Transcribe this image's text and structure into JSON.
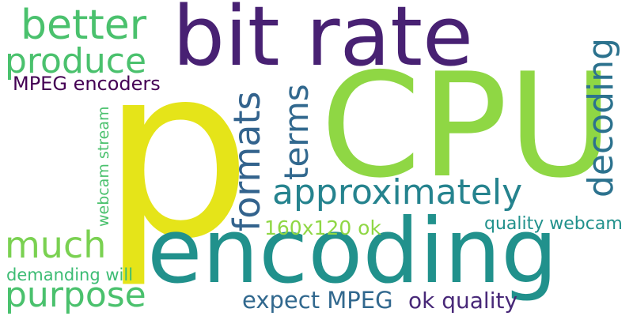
{
  "words": {
    "p": "p",
    "cpu": "CPU",
    "bit_rate": "bit rate",
    "encoding": "encoding",
    "better": "better",
    "produce": "produce",
    "mpeg_encoders": "MPEG encoders",
    "formats": "formats",
    "terms": "terms",
    "decoding": "decoding",
    "approximately": "approximately",
    "webcam_stream": "webcam stream",
    "much": "much",
    "purpose": "purpose",
    "demanding_will": "demanding will",
    "resolution": "160x120 ok",
    "quality_webcam": "quality webcam",
    "expect_mpeg": "expect MPEG",
    "ok_quality": "ok quality"
  },
  "colors": {
    "p": "#e5e419",
    "cpu": "#8fd744",
    "bit_rate": "#482173",
    "encoding": "#21918c",
    "better": "#4ac16d",
    "produce": "#4ac16d",
    "mpeg_encoders": "#440154",
    "formats": "#33638d",
    "terms": "#31688e",
    "decoding": "#2c728e",
    "approximately": "#25838e",
    "webcam_stream": "#4ac16d",
    "much": "#7ad151",
    "purpose": "#4ac16d",
    "demanding_will": "#3dbc74",
    "resolution": "#8fd744",
    "quality_webcam": "#21918c",
    "expect_mpeg": "#31688e",
    "ok_quality": "#482878"
  }
}
